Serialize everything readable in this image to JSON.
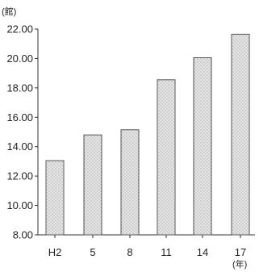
{
  "chart_data": {
    "type": "bar",
    "title": "",
    "xlabel": "(年)",
    "ylabel": "(館)",
    "categories": [
      "H2",
      "5",
      "8",
      "11",
      "14",
      "17"
    ],
    "values": [
      13.05,
      14.8,
      15.15,
      18.55,
      20.05,
      21.65
    ],
    "ylim": [
      8.0,
      22.0
    ],
    "yticks": [
      "8.00",
      "10.00",
      "12.00",
      "14.00",
      "16.00",
      "18.00",
      "20.00",
      "22.00"
    ],
    "grid": false,
    "legend": "none",
    "bar_pattern": "stippled",
    "colors": {
      "bar_fill": "#dedede",
      "bar_stroke": "#555555",
      "axis": "#333333"
    }
  }
}
